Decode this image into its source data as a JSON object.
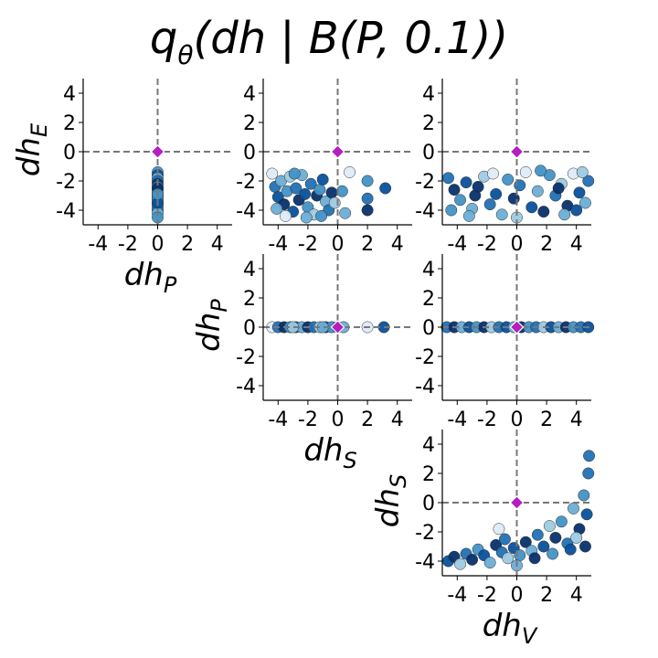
{
  "chart_data": {
    "type": "scatter",
    "title": {
      "q": "q",
      "theta": "θ",
      "rest": "(dh | B(P, 0.1))"
    },
    "ticks": [
      "-4",
      "-2",
      "0",
      "2",
      "4"
    ],
    "xlim": [
      -5,
      5
    ],
    "ylim": [
      -5,
      5
    ],
    "axis_labels": {
      "dhE": {
        "base": "dh",
        "sub": "E"
      },
      "dhP": {
        "base": "dh",
        "sub": "P"
      },
      "dhS": {
        "base": "dh",
        "sub": "S"
      },
      "dhV": {
        "base": "dh",
        "sub": "V"
      }
    },
    "colors": {
      "reference_marker": "#b51fc2",
      "reference_lines": "#777777",
      "points_cmap": [
        "#deebf7",
        "#9ecae1",
        "#6baed6",
        "#4292c6",
        "#2171b5",
        "#08519c",
        "#08306b"
      ]
    },
    "reference_point": {
      "x": 0,
      "y": 0
    },
    "panels": [
      {
        "id": "dhP-dhE",
        "x_var": "dhP",
        "y_var": "dhE",
        "show_xlabel": true,
        "show_ylabel": true,
        "points": [
          [
            0,
            -1.4,
            3
          ],
          [
            0,
            -1.6,
            5
          ],
          [
            0,
            -1.8,
            2
          ],
          [
            0,
            -2.0,
            4
          ],
          [
            0,
            -2.2,
            6
          ],
          [
            0,
            -2.4,
            3
          ],
          [
            0,
            -2.6,
            5
          ],
          [
            0,
            -2.8,
            1
          ],
          [
            0,
            -3.0,
            4
          ],
          [
            0,
            -3.2,
            6
          ],
          [
            0,
            -3.4,
            2
          ],
          [
            0,
            -3.6,
            5
          ],
          [
            0,
            -3.8,
            3
          ],
          [
            0,
            -4.0,
            4
          ],
          [
            0,
            -4.2,
            2
          ],
          [
            0,
            -4.5,
            3
          ],
          [
            0,
            -2.5,
            6
          ],
          [
            0,
            -3.1,
            2
          ],
          [
            0,
            -3.5,
            5
          ],
          [
            0,
            -2.9,
            3
          ]
        ]
      },
      {
        "id": "dhS-dhE",
        "x_var": "dhS",
        "y_var": "dhE",
        "show_xlabel": false,
        "show_ylabel": false,
        "points": [
          [
            -4.4,
            -1.5,
            0
          ],
          [
            -4.2,
            -2.4,
            4
          ],
          [
            -4.0,
            -3.1,
            5
          ],
          [
            -3.8,
            -2.0,
            2
          ],
          [
            -3.6,
            -3.6,
            6
          ],
          [
            -3.4,
            -2.7,
            3
          ],
          [
            -3.2,
            -1.7,
            1
          ],
          [
            -3.0,
            -4.1,
            5
          ],
          [
            -2.8,
            -2.5,
            4
          ],
          [
            -2.6,
            -3.3,
            6
          ],
          [
            -2.4,
            -1.6,
            2
          ],
          [
            -2.2,
            -2.9,
            5
          ],
          [
            -2.0,
            -3.8,
            3
          ],
          [
            -1.8,
            -2.2,
            4
          ],
          [
            -1.6,
            -4.3,
            1
          ],
          [
            -1.4,
            -3.0,
            6
          ],
          [
            -1.2,
            -2.6,
            3
          ],
          [
            -1.0,
            -1.9,
            5
          ],
          [
            -0.8,
            -3.4,
            2
          ],
          [
            -0.6,
            -4.0,
            4
          ],
          [
            -0.4,
            -2.8,
            6
          ],
          [
            -0.2,
            -3.5,
            1
          ],
          [
            0.3,
            -2.7,
            3
          ],
          [
            0.5,
            -4.2,
            2
          ],
          [
            0.8,
            -1.4,
            0
          ],
          [
            2.0,
            -2.0,
            3
          ],
          [
            2.0,
            -3.2,
            4
          ],
          [
            2.0,
            -4.0,
            6
          ],
          [
            3.2,
            -2.5,
            5
          ],
          [
            -4.1,
            -3.9,
            2
          ],
          [
            -3.5,
            -4.4,
            0
          ],
          [
            -2.9,
            -1.5,
            3
          ],
          [
            -2.1,
            -4.5,
            2
          ],
          [
            -1.1,
            -4.4,
            3
          ]
        ]
      },
      {
        "id": "dhV-dhE",
        "x_var": "dhV",
        "y_var": "dhE",
        "show_xlabel": false,
        "show_ylabel": false,
        "points": [
          [
            -4.6,
            -1.8,
            4
          ],
          [
            -4.2,
            -2.6,
            6
          ],
          [
            -3.8,
            -3.3,
            3
          ],
          [
            -3.4,
            -2.1,
            5
          ],
          [
            -3.0,
            -3.9,
            2
          ],
          [
            -2.6,
            -2.4,
            6
          ],
          [
            -2.2,
            -1.7,
            1
          ],
          [
            -1.8,
            -3.6,
            4
          ],
          [
            -1.4,
            -2.9,
            5
          ],
          [
            -1.0,
            -4.3,
            2
          ],
          [
            -0.6,
            -1.9,
            3
          ],
          [
            -0.2,
            -3.2,
            6
          ],
          [
            0.2,
            -2.3,
            4
          ],
          [
            0.6,
            -1.4,
            0
          ],
          [
            1.0,
            -3.8,
            5
          ],
          [
            1.4,
            -2.7,
            2
          ],
          [
            1.8,
            -4.1,
            6
          ],
          [
            2.2,
            -1.6,
            3
          ],
          [
            2.6,
            -3.0,
            4
          ],
          [
            3.0,
            -2.2,
            1
          ],
          [
            3.4,
            -3.7,
            6
          ],
          [
            3.8,
            -1.5,
            0
          ],
          [
            4.2,
            -2.8,
            5
          ],
          [
            4.6,
            -3.5,
            2
          ],
          [
            4.8,
            -2.0,
            4
          ],
          [
            -4.4,
            -4.0,
            3
          ],
          [
            -3.2,
            -4.4,
            2
          ],
          [
            -1.6,
            -1.5,
            0
          ],
          [
            0.0,
            -4.5,
            1
          ],
          [
            1.6,
            -1.3,
            3
          ],
          [
            3.2,
            -4.3,
            2
          ],
          [
            4.4,
            -1.4,
            1
          ],
          [
            -2.8,
            -3.0,
            6
          ],
          [
            2.8,
            -2.5,
            6
          ],
          [
            4.0,
            -4.0,
            5
          ]
        ]
      },
      {
        "id": "dhS-dhP",
        "x_var": "dhS",
        "y_var": "dhP",
        "show_xlabel": true,
        "show_ylabel": true,
        "points": [
          [
            -4.4,
            0,
            0
          ],
          [
            -4.0,
            0,
            4
          ],
          [
            -3.6,
            0,
            6
          ],
          [
            -3.2,
            0,
            3
          ],
          [
            -2.8,
            0,
            5
          ],
          [
            -2.4,
            0,
            2
          ],
          [
            -2.0,
            0,
            6
          ],
          [
            -1.6,
            0,
            4
          ],
          [
            -1.2,
            0,
            1
          ],
          [
            -0.8,
            0,
            5
          ],
          [
            -0.4,
            0,
            3
          ],
          [
            0.0,
            0,
            6
          ],
          [
            0.4,
            0,
            2
          ],
          [
            2.0,
            0,
            0
          ],
          [
            3.1,
            0,
            5
          ],
          [
            -3.0,
            0,
            1
          ],
          [
            -1.0,
            0,
            2
          ]
        ]
      },
      {
        "id": "dhV-dhP",
        "x_var": "dhV",
        "y_var": "dhP",
        "show_xlabel": false,
        "show_ylabel": false,
        "points": [
          [
            -4.7,
            0,
            4
          ],
          [
            -4.2,
            0,
            6
          ],
          [
            -3.7,
            0,
            2
          ],
          [
            -3.2,
            0,
            5
          ],
          [
            -2.7,
            0,
            3
          ],
          [
            -2.2,
            0,
            6
          ],
          [
            -1.7,
            0,
            1
          ],
          [
            -1.2,
            0,
            4
          ],
          [
            -0.7,
            0,
            5
          ],
          [
            -0.2,
            0,
            2
          ],
          [
            0.3,
            0,
            6
          ],
          [
            0.8,
            0,
            3
          ],
          [
            1.3,
            0,
            4
          ],
          [
            1.8,
            0,
            1
          ],
          [
            2.3,
            0,
            5
          ],
          [
            2.8,
            0,
            2
          ],
          [
            3.3,
            0,
            6
          ],
          [
            3.8,
            0,
            3
          ],
          [
            4.3,
            0,
            4
          ],
          [
            4.8,
            0,
            5
          ]
        ]
      },
      {
        "id": "dhV-dhS",
        "x_var": "dhV",
        "y_var": "dhS",
        "show_xlabel": true,
        "show_ylabel": true,
        "points": [
          [
            -4.6,
            -4.0,
            5
          ],
          [
            -4.2,
            -3.7,
            6
          ],
          [
            -3.8,
            -4.2,
            1
          ],
          [
            -3.4,
            -3.5,
            4
          ],
          [
            -3.0,
            -3.9,
            6
          ],
          [
            -2.6,
            -3.2,
            3
          ],
          [
            -2.2,
            -3.6,
            5
          ],
          [
            -1.8,
            -4.1,
            2
          ],
          [
            -1.4,
            -2.9,
            6
          ],
          [
            -1.0,
            -3.4,
            4
          ],
          [
            -0.6,
            -3.8,
            1
          ],
          [
            -0.2,
            -3.1,
            5
          ],
          [
            0.2,
            -3.6,
            3
          ],
          [
            0.6,
            -2.7,
            6
          ],
          [
            1.0,
            -3.3,
            2
          ],
          [
            1.4,
            -2.2,
            4
          ],
          [
            1.8,
            -3.0,
            5
          ],
          [
            2.2,
            -1.6,
            1
          ],
          [
            2.6,
            -2.4,
            6
          ],
          [
            3.0,
            -1.3,
            3
          ],
          [
            3.4,
            -2.8,
            4
          ],
          [
            3.8,
            -0.4,
            2
          ],
          [
            4.2,
            -1.8,
            6
          ],
          [
            4.5,
            0.5,
            3
          ],
          [
            4.7,
            -0.8,
            5
          ],
          [
            4.8,
            2.0,
            4
          ],
          [
            4.85,
            3.2,
            4
          ],
          [
            4.6,
            -3.0,
            6
          ],
          [
            -1.2,
            -1.8,
            0
          ],
          [
            0.0,
            -4.3,
            2
          ],
          [
            1.2,
            -3.8,
            6
          ],
          [
            2.4,
            -3.5,
            3
          ],
          [
            3.6,
            -3.2,
            5
          ],
          [
            4.0,
            -2.4,
            1
          ],
          [
            -0.8,
            -2.5,
            4
          ]
        ]
      }
    ]
  }
}
